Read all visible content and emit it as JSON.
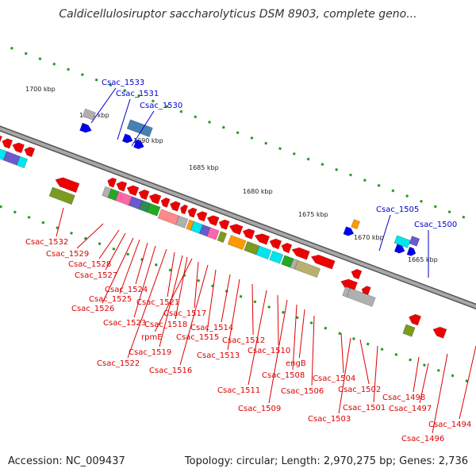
{
  "title": "Caldicellulosiruptor saccharolyticus DSM 8903, complete geno...",
  "footer": {
    "accession": "Accession: NC_009437",
    "info": "Topology: circular; Length: 2,970,275 bp; Genes: 2,736"
  },
  "scale_labels": [
    "1700 kbp",
    "1695 kbp",
    "1690 kbp",
    "1685 kbp",
    "1680 kbp",
    "1675 kbp",
    "1670 kbp",
    "1665 kbp"
  ],
  "forward_labels": [
    "Csac_1533",
    "Csac_1531",
    "Csac_1530",
    "Csac_1505",
    "Csac_1500"
  ],
  "reverse_labels": [
    "Csac_1532",
    "Csac_1529",
    "Csac_1528",
    "Csac_1527",
    "Csac_1526",
    "Csac_1525",
    "Csac_1524",
    "Csac_1523",
    "Csac_1522",
    "Csac_1521",
    "Csac_1519",
    "Csac_1518",
    "rpmE",
    "Csac_1517",
    "Csac_1516",
    "Csac_1515",
    "Csac_1514",
    "Csac_1513",
    "Csac_1512",
    "Csac_1511",
    "Csac_1510",
    "Csac_1509",
    "Csac_1508",
    "engB",
    "Csac_1506",
    "Csac_1504",
    "Csac_1503",
    "Csac_1502",
    "Csac_1501",
    "Csac_1498",
    "Csac_1497",
    "Csac_1496",
    "Csac_1494"
  ],
  "colors": {
    "reverse_gene": "#ee0000",
    "forward_gene": "#0000ee",
    "backbone": "#999999",
    "tick": "#229922",
    "cog_cyan": "#00e5ee",
    "cog_olive": "#7a9a20",
    "cog_grey": "#b0b0b0",
    "cog_steelblue": "#4682b4",
    "cog_orange": "#ff9900",
    "cog_pink": "#ff66aa",
    "cog_salmon": "#ff8888",
    "cog_khaki": "#b8b070",
    "cog_green": "#22aa22",
    "cog_darkgreen": "#2e8b57",
    "cog_purple": "#6a5acd"
  }
}
